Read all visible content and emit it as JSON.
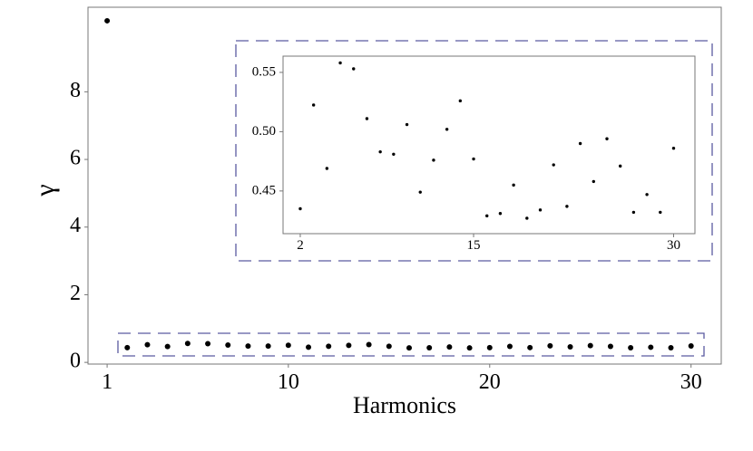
{
  "chart_data": {
    "type": "scatter",
    "xlabel": "Harmonics",
    "ylabel": "γ",
    "x": [
      1,
      2,
      3,
      4,
      5,
      6,
      7,
      8,
      9,
      10,
      11,
      12,
      13,
      14,
      15,
      16,
      17,
      18,
      19,
      20,
      21,
      22,
      23,
      24,
      25,
      26,
      27,
      28,
      29,
      30
    ],
    "values": [
      10.1,
      0.435,
      0.5225,
      0.469,
      0.558,
      0.553,
      0.511,
      0.483,
      0.481,
      0.506,
      0.449,
      0.476,
      0.502,
      0.526,
      0.477,
      0.429,
      0.431,
      0.455,
      0.427,
      0.434,
      0.472,
      0.437,
      0.49,
      0.458,
      0.494,
      0.471,
      0.432,
      0.447,
      0.432,
      0.486
    ],
    "color": "#000000",
    "xlim": [
      0.05,
      31.5
    ],
    "ylim": [
      -0.05,
      10.5
    ],
    "xticks": [
      1,
      10,
      20,
      30
    ],
    "yticks": [
      0,
      2,
      4,
      6,
      8
    ],
    "grid": false,
    "inset": {
      "xlim": [
        0.71,
        31.6
      ],
      "ylim": [
        0.414,
        0.5637
      ],
      "xticks": [
        2,
        15,
        30
      ],
      "yticks": [
        0.45,
        {
          "value": 0.5,
          "label": "0.50"
        },
        0.55
      ]
    }
  }
}
